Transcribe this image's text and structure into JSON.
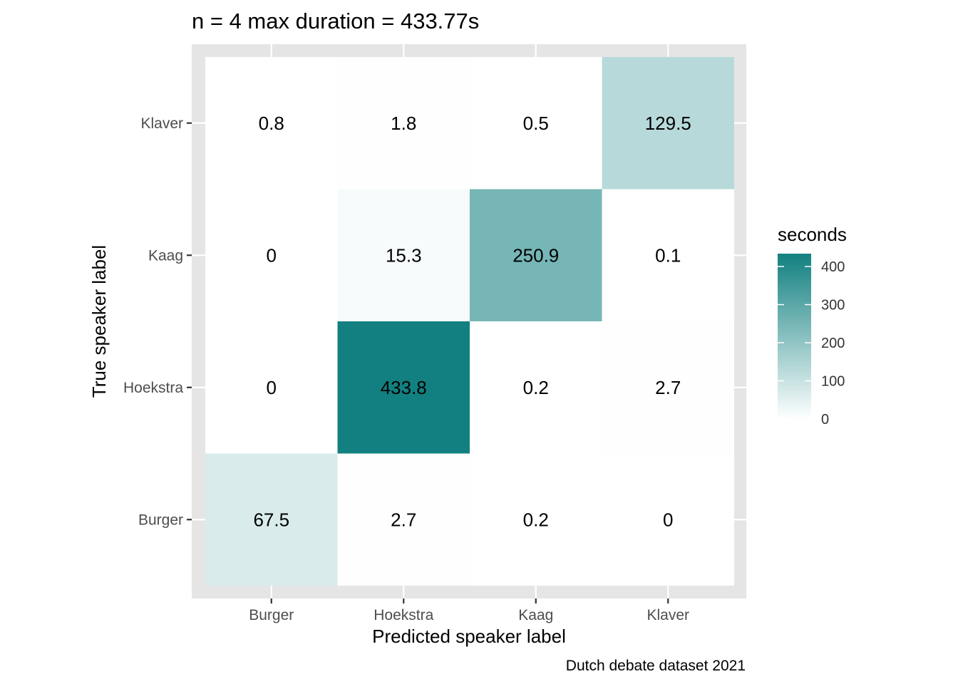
{
  "chart_data": {
    "type": "heatmap",
    "title": "n = 4 max duration = 433.77s",
    "xlabel": "Predicted speaker label",
    "ylabel": "True speaker label",
    "caption": "Dutch debate dataset 2021",
    "x_categories": [
      "Burger",
      "Hoekstra",
      "Kaag",
      "Klaver"
    ],
    "y_categories": [
      "Burger",
      "Hoekstra",
      "Kaag",
      "Klaver"
    ],
    "cells": [
      {
        "true": "Klaver",
        "predicted": "Burger",
        "value": 0.8,
        "label": "0.8"
      },
      {
        "true": "Klaver",
        "predicted": "Hoekstra",
        "value": 1.8,
        "label": "1.8"
      },
      {
        "true": "Klaver",
        "predicted": "Kaag",
        "value": 0.5,
        "label": "0.5"
      },
      {
        "true": "Klaver",
        "predicted": "Klaver",
        "value": 129.5,
        "label": "129.5"
      },
      {
        "true": "Kaag",
        "predicted": "Burger",
        "value": 0,
        "label": "0"
      },
      {
        "true": "Kaag",
        "predicted": "Hoekstra",
        "value": 15.3,
        "label": "15.3"
      },
      {
        "true": "Kaag",
        "predicted": "Kaag",
        "value": 250.9,
        "label": "250.9"
      },
      {
        "true": "Kaag",
        "predicted": "Klaver",
        "value": 0.1,
        "label": "0.1"
      },
      {
        "true": "Hoekstra",
        "predicted": "Burger",
        "value": 0,
        "label": "0"
      },
      {
        "true": "Hoekstra",
        "predicted": "Hoekstra",
        "value": 433.8,
        "label": "433.8"
      },
      {
        "true": "Hoekstra",
        "predicted": "Kaag",
        "value": 0.2,
        "label": "0.2"
      },
      {
        "true": "Hoekstra",
        "predicted": "Klaver",
        "value": 2.7,
        "label": "2.7"
      },
      {
        "true": "Burger",
        "predicted": "Burger",
        "value": 67.5,
        "label": "67.5"
      },
      {
        "true": "Burger",
        "predicted": "Hoekstra",
        "value": 2.7,
        "label": "2.7"
      },
      {
        "true": "Burger",
        "predicted": "Kaag",
        "value": 0.2,
        "label": "0.2"
      },
      {
        "true": "Burger",
        "predicted": "Klaver",
        "value": 0,
        "label": "0"
      }
    ],
    "legend": {
      "title": "seconds",
      "ticks": [
        0,
        100,
        200,
        300,
        400
      ],
      "range": [
        0,
        433.8
      ],
      "low_color": "#ffffff",
      "high_color": "#128080",
      "placement": "right"
    },
    "grid": true,
    "panel_background": "#e5e5e5",
    "grid_color": "#ffffff"
  }
}
